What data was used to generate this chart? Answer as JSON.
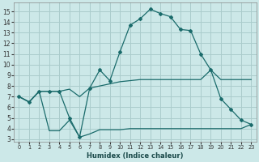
{
  "xlabel": "Humidex (Indice chaleur)",
  "background_color": "#cce8e8",
  "grid_color": "#aacccc",
  "line_color": "#1a6b6b",
  "xlim": [
    -0.5,
    23.5
  ],
  "ylim": [
    2.8,
    15.8
  ],
  "xticks": [
    0,
    1,
    2,
    3,
    4,
    5,
    6,
    7,
    8,
    9,
    10,
    11,
    12,
    13,
    14,
    15,
    16,
    17,
    18,
    19,
    20,
    21,
    22,
    23
  ],
  "yticks": [
    3,
    4,
    5,
    6,
    7,
    8,
    9,
    10,
    11,
    12,
    13,
    14,
    15
  ],
  "series1_x": [
    0,
    1,
    2,
    3,
    4,
    5,
    6,
    7,
    8,
    9,
    10,
    11,
    12,
    13,
    14,
    15,
    16,
    17,
    18,
    19,
    20,
    21,
    22,
    23
  ],
  "series1_y": [
    7.0,
    6.5,
    7.5,
    7.5,
    7.5,
    5.0,
    3.2,
    7.8,
    9.5,
    8.5,
    11.2,
    13.7,
    14.3,
    15.2,
    14.8,
    14.5,
    13.3,
    13.2,
    11.0,
    9.5,
    6.8,
    5.8,
    4.8,
    4.4
  ],
  "series2_x": [
    0,
    1,
    2,
    3,
    4,
    5,
    6,
    7,
    8,
    9,
    10,
    11,
    12,
    13,
    14,
    15,
    16,
    17,
    18,
    19,
    20,
    21,
    22,
    23
  ],
  "series2_y": [
    7.0,
    6.5,
    7.5,
    7.5,
    7.5,
    7.7,
    7.0,
    7.8,
    8.0,
    8.2,
    8.4,
    8.5,
    8.6,
    8.6,
    8.6,
    8.6,
    8.6,
    8.6,
    8.6,
    9.5,
    8.6,
    8.6,
    8.6,
    8.6
  ],
  "series3_x": [
    0,
    1,
    2,
    3,
    4,
    5,
    6,
    7,
    8,
    9,
    10,
    11,
    12,
    13,
    14,
    15,
    16,
    17,
    18,
    19,
    20,
    21,
    22,
    23
  ],
  "series3_y": [
    7.0,
    6.5,
    7.5,
    3.8,
    3.8,
    4.8,
    3.2,
    3.5,
    3.9,
    3.9,
    3.9,
    4.0,
    4.0,
    4.0,
    4.0,
    4.0,
    4.0,
    4.0,
    4.0,
    4.0,
    4.0,
    4.0,
    4.0,
    4.4
  ]
}
